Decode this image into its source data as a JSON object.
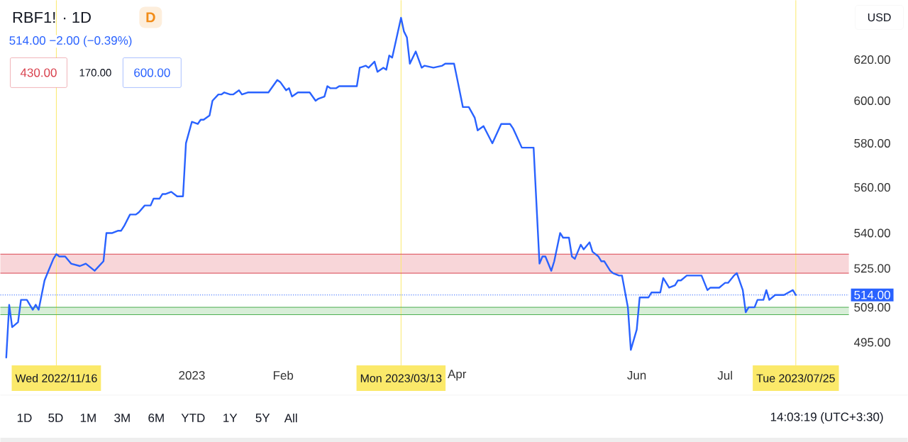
{
  "chart_data": {
    "type": "line",
    "title": "RBF1! · 1D",
    "subtitle": "514.00  −2.00 (−0.39%)",
    "color": "#2962ff",
    "log": true,
    "x": [
      "2022-10-30",
      "2022-10-31",
      "2022-11-01",
      "2022-11-03",
      "2022-11-04",
      "2022-11-06",
      "2022-11-08",
      "2022-11-09",
      "2022-11-10",
      "2022-11-12",
      "2022-11-13",
      "2022-11-15",
      "2022-11-16",
      "2022-11-17",
      "2022-11-19",
      "2022-11-21",
      "2022-11-24",
      "2022-11-26",
      "2022-11-29",
      "2022-12-02",
      "2022-12-03",
      "2022-12-05",
      "2022-12-07",
      "2022-12-08",
      "2022-12-09",
      "2022-12-11",
      "2022-12-13",
      "2022-12-14",
      "2022-12-16",
      "2022-12-18",
      "2022-12-19",
      "2022-12-21",
      "2022-12-22",
      "2022-12-23",
      "2022-12-25",
      "2022-12-27",
      "2022-12-29",
      "2022-12-30",
      "2023-01-01",
      "2023-01-03",
      "2023-01-04",
      "2023-01-05",
      "2023-01-07",
      "2023-01-08",
      "2023-01-10",
      "2023-01-11",
      "2023-01-12",
      "2023-01-14",
      "2023-01-15",
      "2023-01-17",
      "2023-01-18",
      "2023-01-20",
      "2023-01-27",
      "2023-01-30",
      "2023-01-31",
      "2023-02-02",
      "2023-02-03",
      "2023-02-04",
      "2023-02-06",
      "2023-02-10",
      "2023-02-12",
      "2023-02-13",
      "2023-02-15",
      "2023-02-16",
      "2023-02-17",
      "2023-02-19",
      "2023-02-20",
      "2023-02-26",
      "2023-02-27",
      "2023-03-01",
      "2023-03-02",
      "2023-03-04",
      "2023-03-05",
      "2023-03-07",
      "2023-03-08",
      "2023-03-09",
      "2023-03-10",
      "2023-03-13",
      "2023-03-14",
      "2023-03-15",
      "2023-03-16",
      "2023-03-18",
      "2023-03-20",
      "2023-03-21",
      "2023-03-24",
      "2023-03-27",
      "2023-03-28",
      "2023-03-31",
      "2023-04-01",
      "2023-04-03",
      "2023-04-05",
      "2023-04-07",
      "2023-04-08",
      "2023-04-10",
      "2023-04-13",
      "2023-04-16",
      "2023-04-19",
      "2023-04-20",
      "2023-04-21",
      "2023-04-23",
      "2023-04-27",
      "2023-04-29",
      "2023-04-30",
      "2023-05-01",
      "2023-05-03",
      "2023-05-04",
      "2023-05-06",
      "2023-05-07",
      "2023-05-09",
      "2023-05-10",
      "2023-05-11",
      "2023-05-13",
      "2023-05-14",
      "2023-05-16",
      "2023-05-17",
      "2023-05-19",
      "2023-05-20",
      "2023-05-21",
      "2023-05-23",
      "2023-05-24",
      "2023-05-26",
      "2023-05-27",
      "2023-05-29",
      "2023-05-30",
      "2023-06-01",
      "2023-06-02",
      "2023-06-05",
      "2023-06-06",
      "2023-06-09",
      "2023-06-10",
      "2023-06-12",
      "2023-06-14",
      "2023-06-15",
      "2023-06-16",
      "2023-06-18",
      "2023-06-20",
      "2023-06-23",
      "2023-06-25",
      "2023-06-26",
      "2023-06-29",
      "2023-07-01",
      "2023-07-02",
      "2023-07-04",
      "2023-07-05",
      "2023-07-07",
      "2023-07-08",
      "2023-07-09",
      "2023-07-11",
      "2023-07-12",
      "2023-07-14",
      "2023-07-15",
      "2023-07-16",
      "2023-07-18",
      "2023-07-21",
      "2023-07-24",
      "2023-07-25"
    ],
    "values": [
      489,
      510,
      501,
      503,
      512,
      512,
      508,
      510,
      508,
      520,
      523,
      529,
      531,
      530,
      530,
      527,
      526,
      527,
      524,
      528,
      540,
      540,
      541,
      541,
      543,
      548,
      548,
      549,
      552,
      552,
      555,
      555,
      557,
      557,
      558,
      556,
      556,
      580,
      590,
      589,
      591,
      591,
      593,
      600,
      603,
      603,
      604,
      603,
      603,
      605,
      603,
      604,
      604,
      610,
      609,
      605,
      606,
      602,
      604,
      604,
      600,
      601,
      602,
      607,
      606,
      606,
      607,
      607,
      616,
      617,
      616,
      619,
      614,
      616,
      615,
      622,
      621,
      641,
      634,
      631,
      618,
      624,
      616,
      617,
      616,
      617,
      618,
      618,
      611,
      597,
      597,
      592,
      586,
      588,
      580,
      589,
      589,
      587,
      584,
      578,
      578,
      527,
      530,
      530,
      524,
      528,
      540,
      538,
      538,
      530,
      529,
      535,
      533,
      536,
      532,
      530,
      528,
      528,
      524,
      523,
      522,
      522,
      509,
      492,
      500,
      513,
      513,
      515,
      515,
      521,
      517,
      518,
      520,
      520,
      522,
      522,
      522,
      516,
      517,
      517,
      519,
      519,
      522,
      523,
      516,
      507,
      509,
      509,
      512,
      512,
      516,
      512,
      514,
      514,
      516,
      514
    ],
    "xlim": [
      "2022-10-28",
      "2023-08-12"
    ],
    "ylim": [
      486,
      650
    ],
    "xticks": [
      {
        "value": "2023-01-01",
        "label": "2023"
      },
      {
        "value": "2023-02-01",
        "label": "Feb"
      },
      {
        "value": "2023-04-01",
        "label": "Apr"
      },
      {
        "value": "2023-06-01",
        "label": "Jun"
      },
      {
        "value": "2023-07-01",
        "label": "Jul"
      }
    ],
    "yticks": [
      {
        "value": 620,
        "label": "620.00"
      },
      {
        "value": 600,
        "label": "600.00"
      },
      {
        "value": 580,
        "label": "580.00"
      },
      {
        "value": 560,
        "label": "560.00"
      },
      {
        "value": 540,
        "label": "540.00"
      },
      {
        "value": 525,
        "label": "525.00"
      },
      {
        "value": 509,
        "label": "509.00"
      },
      {
        "value": 495,
        "label": "495.00"
      }
    ],
    "ref_lines": [
      {
        "axis": "x",
        "value": "2022-11-16",
        "label": "Wed 2022/11/16",
        "color": "#fbe96a"
      },
      {
        "axis": "x",
        "value": "2023-03-13",
        "label": "Mon 2023/03/13",
        "color": "#fbe96a"
      },
      {
        "axis": "x",
        "value": "2023-07-25",
        "label": "Tue 2023/07/25",
        "color": "#fbe96a"
      },
      {
        "axis": "y",
        "value": 514,
        "label": "514.00",
        "color": "#2962ff",
        "line_style": "dotted"
      },
      {
        "axis": "y",
        "value": 531,
        "color": "#d9414d"
      },
      {
        "axis": "y",
        "value": 523,
        "color": "#d9414d"
      },
      {
        "axis": "y",
        "value": 509,
        "color": "#4caf50"
      },
      {
        "axis": "y",
        "value": 506,
        "color": "#4caf50"
      }
    ],
    "bands": [
      {
        "axis": "y",
        "from": 523,
        "to": 531,
        "color": "#f8d6d9"
      },
      {
        "axis": "y",
        "from": 506,
        "to": 509,
        "color": "#d8eed8"
      }
    ],
    "annotations": [
      "D",
      "430.00",
      "170.00",
      "600.00",
      "USD",
      "1D",
      "5D",
      "1M",
      "3M",
      "6M",
      "YTD",
      "1Y",
      "5Y",
      "All",
      "14:03:19 (UTC+3:30)"
    ]
  }
}
